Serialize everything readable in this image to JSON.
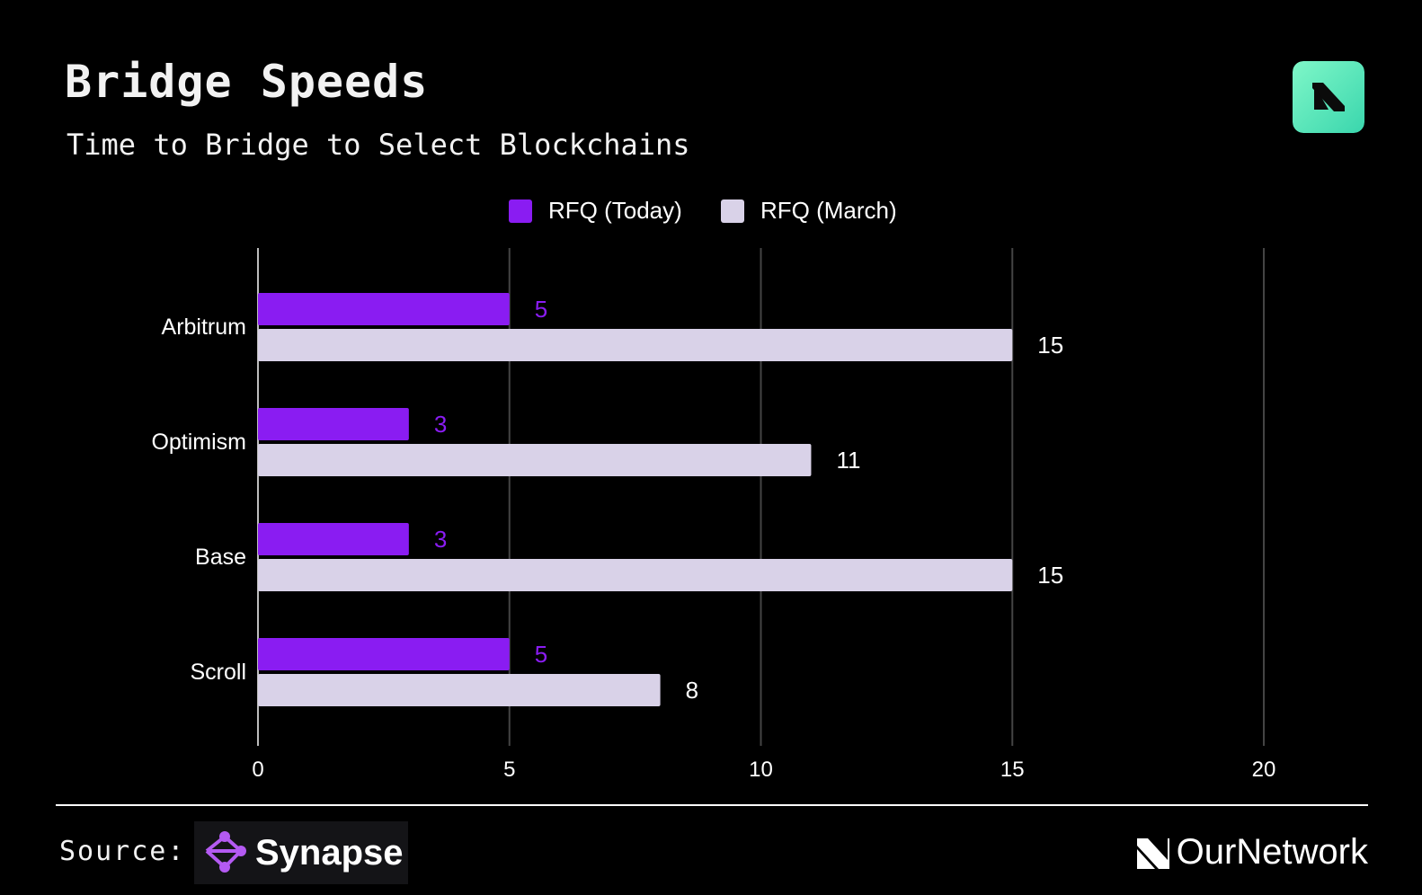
{
  "header": {
    "title": "Bridge Speeds",
    "subtitle": "Time to Bridge to Select Blockchains"
  },
  "footer": {
    "source_label": "Source:",
    "source_brand": "Synapse",
    "publisher": "OurNetwork"
  },
  "colors": {
    "today": "#8a1cf2",
    "march": "#d9d2e8",
    "logo_gradient_start": "#78f5c2",
    "logo_gradient_end": "#3fd9b0"
  },
  "icons": {
    "top_logo": "ournetwork-logo-icon",
    "synapse_logo": "synapse-logo-icon",
    "ournetwork_logo": "ournetwork-mark-icon"
  },
  "chart_data": {
    "type": "bar",
    "orientation": "horizontal",
    "categories": [
      "Arbitrum",
      "Optimism",
      "Base",
      "Scroll"
    ],
    "series": [
      {
        "name": "RFQ (Today)",
        "values": [
          5,
          3,
          3,
          5
        ]
      },
      {
        "name": "RFQ (March)",
        "values": [
          15,
          11,
          15,
          8
        ]
      }
    ],
    "xlim": [
      0,
      20
    ],
    "xticks": [
      0,
      5,
      10,
      15,
      20
    ],
    "grid": true,
    "legend": "top-center",
    "data_labels": true
  }
}
